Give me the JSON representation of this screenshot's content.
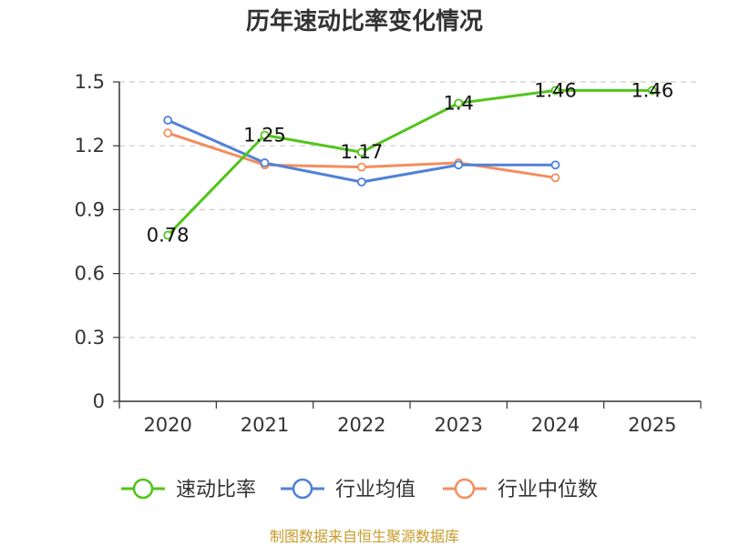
{
  "chart_data": {
    "type": "line",
    "title": "历年速动比率变化情况",
    "categories": [
      "2020",
      "2021",
      "2022",
      "2023",
      "2024",
      "2025"
    ],
    "ylim": [
      0,
      1.5
    ],
    "yticks": [
      "0",
      "0.3",
      "0.6",
      "0.9",
      "1.2",
      "1.5"
    ],
    "ytick_values": [
      0,
      0.3,
      0.6,
      0.9,
      1.2,
      1.5
    ],
    "grid": true,
    "legend_position": "bottom",
    "series": [
      {
        "name": "速动比率",
        "color": "#52c41a",
        "values": [
          0.78,
          1.25,
          1.17,
          1.4,
          1.46,
          1.46
        ],
        "labels": [
          "0.78",
          "1.25",
          "1.17",
          "1.4",
          "1.46",
          "1.46"
        ]
      },
      {
        "name": "行业均值",
        "color": "#4f81d8",
        "values": [
          1.32,
          1.12,
          1.03,
          1.11,
          1.11,
          null
        ]
      },
      {
        "name": "行业中位数",
        "color": "#f58d5d",
        "values": [
          1.26,
          1.11,
          1.1,
          1.12,
          1.05,
          null
        ]
      }
    ],
    "source": "制图数据来自恒生聚源数据库"
  }
}
